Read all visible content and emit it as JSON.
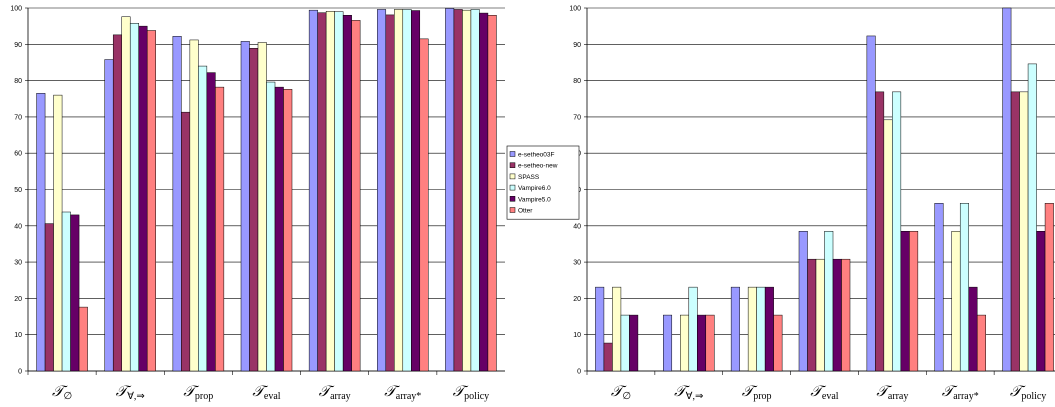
{
  "chart_data": [
    {
      "type": "bar",
      "categories": [
        "𝒯∅",
        "𝒯∀,⇒",
        "𝒯prop",
        "𝒯eval",
        "𝒯array",
        "𝒯array*",
        "𝒯policy"
      ],
      "ylim": [
        0,
        100
      ],
      "yticks": [
        0,
        10,
        20,
        30,
        40,
        50,
        60,
        70,
        80,
        90,
        100
      ],
      "grid": true,
      "legend": "right",
      "series": [
        {
          "name": "e-setheo03F",
          "color": "#9999ff",
          "values": [
            76.5,
            85.8,
            92.2,
            90.8,
            99.4,
            99.6,
            99.9
          ]
        },
        {
          "name": "e-setheo-new",
          "color": "#993366",
          "values": [
            40.6,
            92.6,
            71.3,
            88.9,
            98.7,
            98.1,
            99.6
          ]
        },
        {
          "name": "SPASS",
          "color": "#ffffcc",
          "values": [
            76.0,
            97.6,
            91.2,
            90.5,
            99.1,
            99.6,
            99.4
          ]
        },
        {
          "name": "Vampire6.0",
          "color": "#ccffff",
          "values": [
            43.8,
            95.8,
            84.0,
            79.6,
            99.0,
            99.6,
            99.6
          ]
        },
        {
          "name": "Vampire5.0",
          "color": "#660066",
          "values": [
            43.0,
            95.0,
            82.2,
            78.2,
            98.0,
            99.3,
            98.6
          ]
        },
        {
          "name": "Otter",
          "color": "#ff8080",
          "values": [
            17.6,
            93.8,
            78.2,
            77.6,
            96.6,
            91.5,
            98.0
          ]
        }
      ]
    },
    {
      "type": "bar",
      "categories": [
        "𝒯∅",
        "𝒯∀,⇒",
        "𝒯prop",
        "𝒯eval",
        "𝒯array",
        "𝒯array*",
        "𝒯policy"
      ],
      "ylim": [
        0,
        100
      ],
      "yticks": [
        0,
        10,
        20,
        30,
        40,
        50,
        60,
        70,
        80,
        90,
        100
      ],
      "grid": true,
      "series": [
        {
          "name": "e-setheo03F",
          "color": "#9999ff",
          "values": [
            23.1,
            15.4,
            23.1,
            38.5,
            92.3,
            46.2,
            100.0
          ]
        },
        {
          "name": "e-setheo-new",
          "color": "#993366",
          "values": [
            7.7,
            0,
            0,
            30.8,
            76.9,
            0,
            76.9
          ]
        },
        {
          "name": "SPASS",
          "color": "#ffffcc",
          "values": [
            23.1,
            15.4,
            23.1,
            30.8,
            69.2,
            38.5,
            76.9
          ]
        },
        {
          "name": "Vampire6.0",
          "color": "#ccffff",
          "values": [
            15.4,
            23.1,
            23.1,
            38.5,
            76.9,
            46.2,
            84.6
          ]
        },
        {
          "name": "Vampire5.0",
          "color": "#660066",
          "values": [
            15.4,
            15.4,
            23.1,
            30.8,
            38.5,
            23.1,
            38.5
          ]
        },
        {
          "name": "Otter",
          "color": "#ff8080",
          "values": [
            0,
            15.4,
            15.4,
            30.8,
            38.5,
            15.4,
            46.2
          ]
        }
      ]
    }
  ]
}
